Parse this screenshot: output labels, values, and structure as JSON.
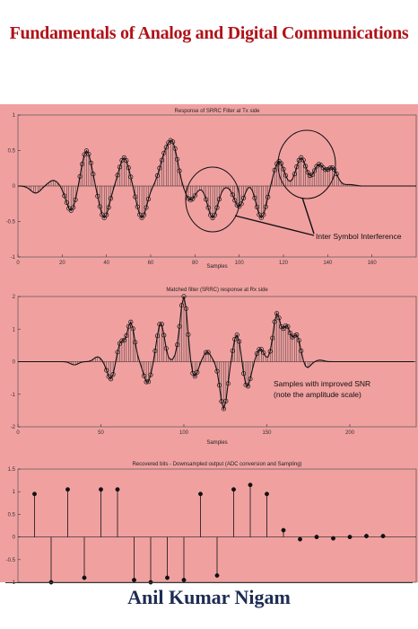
{
  "book": {
    "title": "Fundamentals of Analog and Digital Communications",
    "author": "Anil Kumar Nigam"
  },
  "colors": {
    "title": "#b01218",
    "panel": "#f1a0a0",
    "author": "#1d2c52"
  },
  "chart_data": [
    {
      "type": "line",
      "title": "Response of SRRC Filter at Tx side",
      "xlabel": "Samples",
      "xlim": [
        0,
        180
      ],
      "ylim": [
        -1,
        1
      ],
      "x_ticks": [
        "0",
        "20",
        "40",
        "60",
        "80",
        "100",
        "120",
        "140",
        "160"
      ],
      "y_ticks": [
        "1",
        "0.5",
        "0",
        "-0.5",
        "-1"
      ],
      "annotation": "Inter Symbol Interference",
      "pulses": [
        [
          8,
          -0.1
        ],
        [
          16,
          0.08
        ],
        [
          24,
          -0.35
        ],
        [
          31,
          0.5
        ],
        [
          39,
          -0.45
        ],
        [
          48,
          0.4
        ],
        [
          56,
          -0.45
        ],
        [
          66,
          0.35
        ],
        [
          70,
          0.55
        ],
        [
          78,
          -0.2
        ],
        [
          88,
          -0.45
        ],
        [
          100,
          -0.3
        ],
        [
          104,
          0.05
        ],
        [
          110,
          -0.45
        ],
        [
          118,
          0.35
        ],
        [
          128,
          0.4
        ],
        [
          136,
          0.3
        ],
        [
          142,
          0.25
        ],
        [
          150,
          0.02
        ]
      ]
    },
    {
      "type": "line",
      "title": "Matched filter (SRRC) response at Rx side",
      "xlabel": "Samples",
      "xlim": [
        0,
        240
      ],
      "ylim": [
        -2,
        2
      ],
      "x_ticks": [
        "0",
        "50",
        "100",
        "150",
        "200"
      ],
      "y_ticks": [
        "2",
        "1",
        "0",
        "-1",
        "-2"
      ],
      "annotation_line1": "Samples with improved SNR",
      "annotation_line2": "(note the amplitude scale)",
      "pulses": [
        [
          34,
          -0.1
        ],
        [
          48,
          0.15
        ],
        [
          56,
          -0.55
        ],
        [
          62,
          0.6
        ],
        [
          68,
          1.2
        ],
        [
          78,
          -0.65
        ],
        [
          86,
          1.2
        ],
        [
          96,
          0.1
        ],
        [
          100,
          2.0
        ],
        [
          106,
          -0.5
        ],
        [
          114,
          0.3
        ],
        [
          124,
          -1.45
        ],
        [
          132,
          0.85
        ],
        [
          138,
          -0.8
        ],
        [
          146,
          0.4
        ],
        [
          156,
          1.45
        ],
        [
          162,
          1.05
        ],
        [
          168,
          0.8
        ],
        [
          174,
          -0.2
        ],
        [
          182,
          0.05
        ]
      ]
    },
    {
      "type": "scatter",
      "title": "Recovered bits - Downsampled output (ADC conversion and Sampling)",
      "xlim": [
        0,
        24
      ],
      "ylim": [
        -1,
        1.5
      ],
      "y_ticks": [
        "1.5",
        "1",
        "0.5",
        "0",
        "-0.5",
        "-1"
      ],
      "x": [
        1,
        2,
        3,
        4,
        5,
        6,
        7,
        8,
        9,
        10,
        11,
        12,
        13,
        14,
        15,
        16,
        17,
        18,
        19,
        20,
        21,
        22
      ],
      "values": [
        0.95,
        -1.0,
        1.05,
        -0.9,
        1.05,
        1.05,
        -0.95,
        -1.0,
        -0.9,
        -0.95,
        0.95,
        -0.85,
        1.05,
        1.15,
        0.95,
        0.15,
        -0.05,
        0.0,
        -0.03,
        0.0,
        0.02,
        0.02
      ]
    }
  ]
}
